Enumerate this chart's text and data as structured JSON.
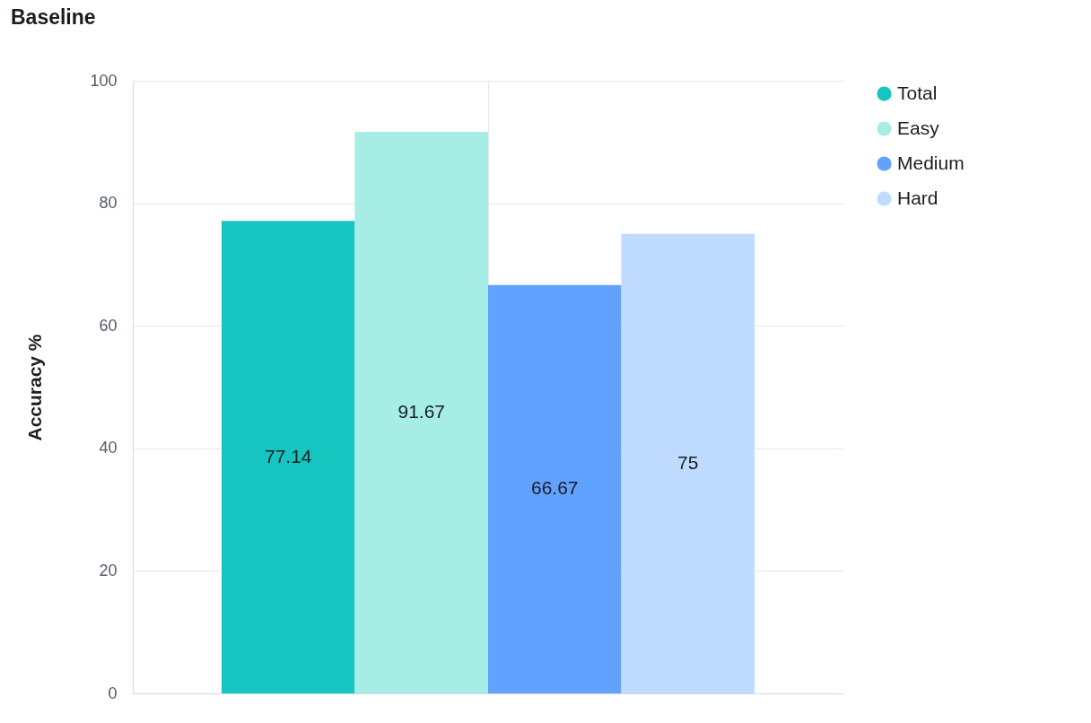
{
  "chart_data": {
    "type": "bar",
    "title": "Baseline",
    "ylabel": "Accuracy %",
    "categories": [
      null
    ],
    "series": [
      {
        "name": "Total",
        "color": "#16c5c0",
        "values": [
          77.14
        ]
      },
      {
        "name": "Easy",
        "color": "#a6ede6",
        "values": [
          91.67
        ]
      },
      {
        "name": "Medium",
        "color": "#61a2ff",
        "values": [
          66.67
        ]
      },
      {
        "name": "Hard",
        "color": "#bfdbff",
        "values": [
          75
        ]
      }
    ],
    "ylim": [
      0,
      100
    ],
    "yticks": [
      0,
      20,
      40,
      60,
      80,
      100
    ],
    "grid": true,
    "legend": "top right",
    "data_labels": true
  }
}
